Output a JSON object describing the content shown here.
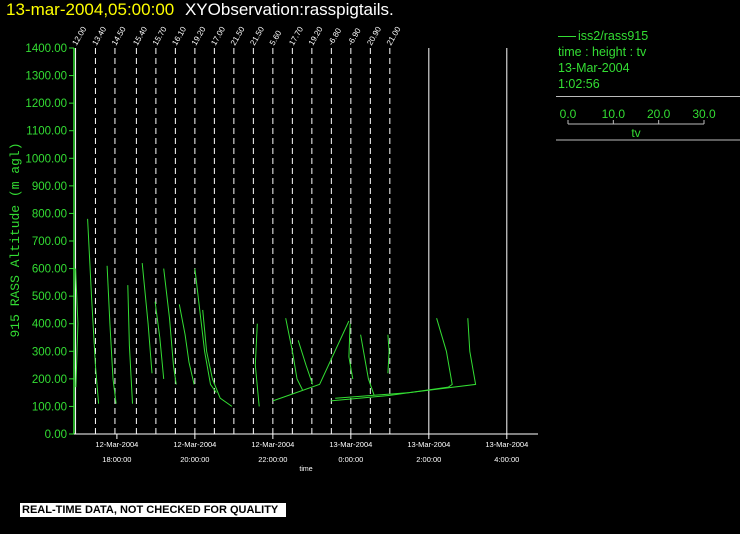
{
  "header": {
    "timestamp": "13-mar-2004,05:00:00",
    "title": "XYObservation:rasspigtails."
  },
  "legend": {
    "series_label": "iss2/rass915",
    "axis_desc": "time : height : tv",
    "date": "13-Mar-2004",
    "time": "1:02:56",
    "scale_ticks": [
      "0.0",
      "10.0",
      "20.0",
      "30.0"
    ],
    "scale_label": "tv"
  },
  "footer": {
    "note": "REAL-TIME DATA, NOT CHECKED FOR QUALITY"
  },
  "colors": {
    "background": "#000000",
    "series": "#33dd33",
    "axis": "#ffffff",
    "title_timestamp": "#ffff00"
  },
  "chart_data": {
    "type": "line",
    "xlabel": "time",
    "ylabel": "915 RASS Altitude (m agl)",
    "ylim": [
      0,
      1400
    ],
    "yticks": [
      0,
      100,
      200,
      300,
      400,
      500,
      600,
      700,
      800,
      900,
      1000,
      1100,
      1200,
      1300,
      1400
    ],
    "ytick_labels": [
      "0.00",
      "100.00",
      "200.00",
      "300.00",
      "400.00",
      "500.00",
      "600.00",
      "700.00",
      "800.00",
      "900.00",
      "1000.00",
      "1100.00",
      "1200.00",
      "1300.00",
      "1400.00"
    ],
    "xlim": [
      16.9,
      28.8
    ],
    "x_unit": "hours since 12-Mar-2004 00:00",
    "xticks": [
      {
        "x": 18,
        "date": "12-Mar-2004",
        "time": "18:00:00"
      },
      {
        "x": 20,
        "date": "12-Mar-2004",
        "time": "20:00:00"
      },
      {
        "x": 22,
        "date": "12-Mar-2004",
        "time": "22:00:00"
      },
      {
        "x": 24,
        "date": "13-Mar-2004",
        "time": "0:00:00"
      },
      {
        "x": 26,
        "date": "13-Mar-2004",
        "time": "2:00:00"
      },
      {
        "x": 28,
        "date": "13-Mar-2004",
        "time": "4:00:00"
      }
    ],
    "reference_lines": [
      {
        "x": 16.94,
        "label": "12.00",
        "style": "solid"
      },
      {
        "x": 17.45,
        "label": "13.40",
        "style": "dashed"
      },
      {
        "x": 17.95,
        "label": "14.50",
        "style": "dashed"
      },
      {
        "x": 18.5,
        "label": "15.40",
        "style": "dashed"
      },
      {
        "x": 19.0,
        "label": "15.70",
        "style": "dashed"
      },
      {
        "x": 19.5,
        "label": "16.10",
        "style": "dashed"
      },
      {
        "x": 20.0,
        "label": "19.20",
        "style": "dashed"
      },
      {
        "x": 20.5,
        "label": "17.00",
        "style": "dashed"
      },
      {
        "x": 21.0,
        "label": "21.50",
        "style": "dashed"
      },
      {
        "x": 21.5,
        "label": "21.50",
        "style": "dashed"
      },
      {
        "x": 22.0,
        "label": "5.60",
        "style": "dashed"
      },
      {
        "x": 22.5,
        "label": "17.70",
        "style": "dashed"
      },
      {
        "x": 23.0,
        "label": "19.20",
        "style": "dashed"
      },
      {
        "x": 23.5,
        "label": "-6.80",
        "style": "dashed"
      },
      {
        "x": 24.0,
        "label": "-6.90",
        "style": "dashed"
      },
      {
        "x": 24.5,
        "label": "20.90",
        "style": "dashed"
      },
      {
        "x": 25.0,
        "label": "21.00",
        "style": "dashed"
      },
      {
        "x": 26.0,
        "label": "",
        "style": "solid"
      },
      {
        "x": 28.0,
        "label": "",
        "style": "solid"
      }
    ],
    "series": [
      {
        "points": [
          [
            16.94,
            600
          ],
          [
            17.0,
            400
          ],
          [
            16.95,
            170
          ]
        ]
      },
      {
        "points": [
          [
            17.25,
            780
          ],
          [
            17.35,
            500
          ],
          [
            17.45,
            250
          ],
          [
            17.53,
            110
          ]
        ]
      },
      {
        "points": [
          [
            17.75,
            610
          ],
          [
            17.82,
            400
          ],
          [
            17.9,
            200
          ],
          [
            17.98,
            110
          ]
        ]
      },
      {
        "points": [
          [
            18.28,
            540
          ],
          [
            18.32,
            320
          ],
          [
            18.4,
            110
          ]
        ]
      },
      {
        "points": [
          [
            18.65,
            620
          ],
          [
            18.8,
            400
          ],
          [
            18.9,
            220
          ]
        ]
      },
      {
        "points": [
          [
            18.98,
            480
          ],
          [
            19.1,
            350
          ],
          [
            19.2,
            200
          ]
        ]
      },
      {
        "points": [
          [
            19.2,
            600
          ],
          [
            19.35,
            420
          ],
          [
            19.45,
            250
          ],
          [
            19.52,
            180
          ]
        ]
      },
      {
        "points": [
          [
            19.6,
            470
          ],
          [
            19.75,
            360
          ],
          [
            19.85,
            260
          ],
          [
            19.98,
            180
          ]
        ]
      },
      {
        "points": [
          [
            20.0,
            600
          ],
          [
            20.15,
            420
          ],
          [
            20.25,
            300
          ],
          [
            20.4,
            180
          ],
          [
            20.55,
            150
          ]
        ]
      },
      {
        "points": [
          [
            20.2,
            450
          ],
          [
            20.3,
            300
          ],
          [
            20.45,
            200
          ],
          [
            20.65,
            130
          ],
          [
            20.95,
            100
          ]
        ]
      },
      {
        "points": [
          [
            21.6,
            400
          ],
          [
            21.55,
            250
          ],
          [
            21.65,
            100
          ]
        ]
      },
      {
        "points": [
          [
            22.0,
            120
          ],
          [
            22.6,
            150
          ],
          [
            23.2,
            180
          ],
          [
            23.95,
            410
          ]
        ]
      },
      {
        "points": [
          [
            22.33,
            420
          ],
          [
            22.5,
            300
          ],
          [
            22.62,
            200
          ],
          [
            22.76,
            160
          ]
        ]
      },
      {
        "points": [
          [
            22.65,
            340
          ],
          [
            22.85,
            250
          ],
          [
            23.02,
            180
          ]
        ]
      },
      {
        "points": [
          [
            23.98,
            400
          ],
          [
            23.95,
            280
          ],
          [
            24.05,
            200
          ]
        ]
      },
      {
        "points": [
          [
            24.25,
            360
          ],
          [
            24.35,
            280
          ],
          [
            24.45,
            200
          ],
          [
            24.6,
            140
          ]
        ]
      },
      {
        "points": [
          [
            24.95,
            360
          ],
          [
            24.98,
            300
          ],
          [
            24.95,
            220
          ]
        ]
      },
      {
        "points": [
          [
            23.48,
            120
          ],
          [
            25.0,
            140
          ],
          [
            26.5,
            170
          ],
          [
            26.6,
            180
          ],
          [
            26.45,
            300
          ],
          [
            26.2,
            420
          ]
        ]
      },
      {
        "points": [
          [
            23.6,
            130
          ],
          [
            25.5,
            150
          ],
          [
            27.2,
            180
          ],
          [
            27.05,
            300
          ],
          [
            27.0,
            420
          ]
        ]
      }
    ]
  }
}
